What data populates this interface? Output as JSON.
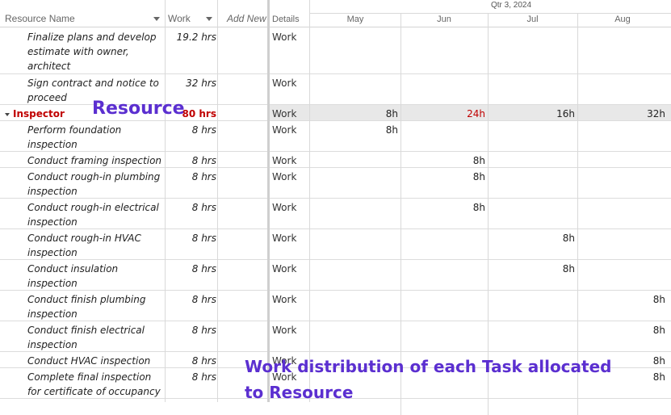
{
  "columns": {
    "resource_name": "Resource Name",
    "work": "Work",
    "add_new": "Add New",
    "details": "Details"
  },
  "timescale": {
    "quarter": "Qtr 3, 2024",
    "months": [
      "May",
      "Jun",
      "Jul",
      "Aug"
    ]
  },
  "rows": [
    {
      "name": "Finalize plans and develop estimate with owner, architect",
      "work": "19.2 hrs",
      "details": "Work",
      "cells": [
        "",
        "",
        "",
        ""
      ]
    },
    {
      "name": "Sign contract and notice to proceed",
      "work": "32 hrs",
      "details": "Work",
      "cells": [
        "",
        "",
        "",
        ""
      ]
    },
    {
      "name": "Inspector",
      "work": "80 hrs",
      "details": "Work",
      "cells": [
        "8h",
        "24h",
        "16h",
        "32h"
      ],
      "resource": true
    },
    {
      "name": "Perform foundation inspection",
      "work": "8 hrs",
      "details": "Work",
      "cells": [
        "8h",
        "",
        "",
        ""
      ]
    },
    {
      "name": "Conduct framing inspection",
      "work": "8 hrs",
      "details": "Work",
      "cells": [
        "",
        "8h",
        "",
        ""
      ]
    },
    {
      "name": "Conduct rough-in plumbing inspection",
      "work": "8 hrs",
      "details": "Work",
      "cells": [
        "",
        "8h",
        "",
        ""
      ]
    },
    {
      "name": "Conduct rough-in electrical inspection",
      "work": "8 hrs",
      "details": "Work",
      "cells": [
        "",
        "8h",
        "",
        ""
      ]
    },
    {
      "name": "Conduct rough-in HVAC inspection",
      "work": "8 hrs",
      "details": "Work",
      "cells": [
        "",
        "",
        "8h",
        ""
      ]
    },
    {
      "name": "Conduct insulation inspection",
      "work": "8 hrs",
      "details": "Work",
      "cells": [
        "",
        "",
        "8h",
        ""
      ]
    },
    {
      "name": "Conduct finish plumbing inspection",
      "work": "8 hrs",
      "details": "Work",
      "cells": [
        "",
        "",
        "",
        "8h"
      ]
    },
    {
      "name": "Conduct finish electrical inspection",
      "work": "8 hrs",
      "details": "Work",
      "cells": [
        "",
        "",
        "",
        "8h"
      ]
    },
    {
      "name": "Conduct HVAC inspection",
      "work": "8 hrs",
      "details": "Work",
      "cells": [
        "",
        "",
        "",
        "8h"
      ]
    },
    {
      "name": "Complete final inspection for certificate of occupancy",
      "work": "8 hrs",
      "details": "Work",
      "cells": [
        "",
        "",
        "",
        "8h"
      ]
    }
  ],
  "annotations": {
    "resource": "Resource",
    "work_distribution_line1": "Work distribution of each Task allocated",
    "work_distribution_line2": "to Resource"
  },
  "colors": {
    "resource_text": "#c00000",
    "callout": "#5b2fd0",
    "red_cell": "#c00000"
  }
}
